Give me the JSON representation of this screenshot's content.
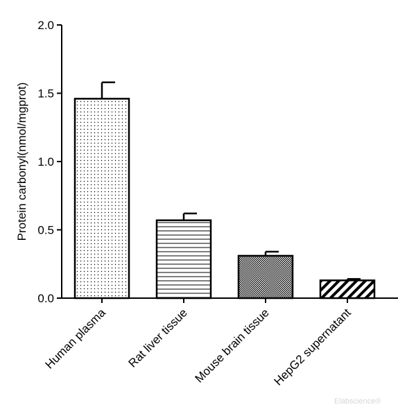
{
  "chart_data": {
    "type": "bar",
    "title": "",
    "xlabel": "",
    "ylabel": "Protein carbonyl(nmol/mgprot)",
    "ylim": [
      0,
      2.0
    ],
    "yticks": [
      "0.0",
      "0.5",
      "1.0",
      "1.5",
      "2.0"
    ],
    "categories": [
      "Human plasma",
      "Rat liver tissue",
      "Mouse brain tissue",
      "HepG2 supernatant"
    ],
    "values": [
      1.46,
      0.57,
      0.31,
      0.13
    ],
    "errors": [
      0.12,
      0.05,
      0.03,
      0.01
    ],
    "patterns": [
      "dots",
      "horizontal-lines",
      "crosshatch",
      "diagonal-stripes"
    ],
    "grid": false,
    "legend": "none"
  },
  "watermark": "Elabscience®",
  "colors": {
    "axis": "#000000",
    "bar_fill": "#ffffff",
    "watermark": "#d6d6d6"
  }
}
